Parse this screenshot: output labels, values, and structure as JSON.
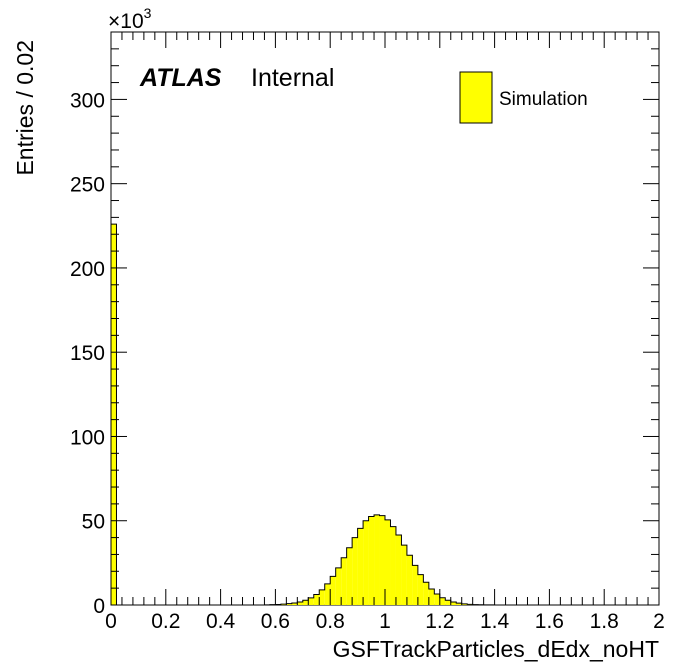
{
  "chart_data": {
    "type": "bar",
    "title": "",
    "xlabel": "GSFTrackParticles_dEdx_noHT",
    "ylabel": "Entries / 0.02",
    "y_multiplier_base": "×10",
    "y_multiplier_exp": "3",
    "xlim": [
      0,
      2
    ],
    "ylim": [
      0,
      340
    ],
    "bin_width": 0.02,
    "x_ticks": [
      "0",
      "0.2",
      "0.4",
      "0.6",
      "0.8",
      "1",
      "1.2",
      "1.4",
      "1.6",
      "1.8",
      "2"
    ],
    "y_ticks": [
      "0",
      "50",
      "100",
      "150",
      "200",
      "250",
      "300"
    ],
    "fill_color": "#ffff00",
    "line_color": "#000000",
    "grid": false,
    "legend_position": "top-right",
    "series": [
      {
        "name": "Simulation",
        "values": [
          226,
          0,
          0,
          0,
          0,
          0,
          0,
          0,
          0,
          0,
          0,
          0,
          0,
          0,
          0,
          0,
          0,
          0,
          0,
          0,
          0,
          0,
          0,
          0,
          0,
          0,
          0,
          0,
          0.1,
          0.2,
          0.3,
          0.5,
          0.8,
          1.2,
          1.8,
          2.8,
          4.2,
          6.2,
          9,
          12.5,
          17,
          22,
          28,
          34,
          40,
          45.5,
          50,
          52.5,
          53.5,
          53,
          50.5,
          46.5,
          41.5,
          35.5,
          29.5,
          23.5,
          18,
          13.5,
          9.5,
          6.5,
          4.3,
          2.8,
          1.8,
          1.1,
          0.7,
          0.4,
          0.25,
          0.15,
          0.08,
          0.04,
          0,
          0,
          0,
          0,
          0,
          0,
          0,
          0,
          0,
          0,
          0,
          0,
          0,
          0,
          0,
          0,
          0,
          0,
          0,
          0,
          0,
          0,
          0,
          0,
          0,
          0,
          0,
          0,
          0,
          0
        ]
      }
    ]
  },
  "labels": {
    "atlas": "ATLAS",
    "internal": "Internal"
  }
}
